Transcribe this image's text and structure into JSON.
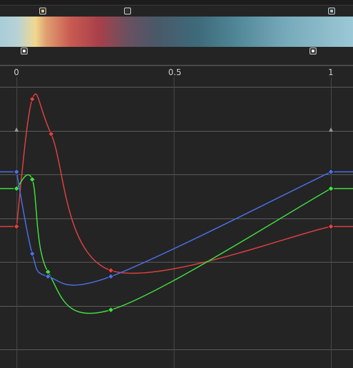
{
  "gradient": {
    "color_stops": [
      {
        "pos": 0.07,
        "color": "#e8c872"
      },
      {
        "pos": 0.34,
        "color": "#333333"
      },
      {
        "pos": 0.99,
        "color": "#9ccbd8"
      }
    ],
    "alpha_stops": [
      {
        "pos": 0.01,
        "color": "#eeeeee"
      },
      {
        "pos": 0.93,
        "color": "#eeeeee"
      }
    ]
  },
  "ruler": {
    "labels": [
      "0",
      "0.5",
      "1"
    ]
  },
  "curves": [
    {
      "name": "red",
      "color": "#e04040",
      "points": [
        [
          0.0,
          0.37
        ],
        [
          0.05,
          1.21
        ],
        [
          0.11,
          0.98
        ],
        [
          0.3,
          0.08
        ],
        [
          1.0,
          0.37
        ]
      ]
    },
    {
      "name": "green",
      "color": "#40e040",
      "points": [
        [
          0.0,
          0.62
        ],
        [
          0.05,
          0.68
        ],
        [
          0.1,
          0.07
        ],
        [
          0.3,
          -0.18
        ],
        [
          1.0,
          0.62
        ]
      ]
    },
    {
      "name": "blue",
      "color": "#4a70e8",
      "points": [
        [
          0.0,
          0.73
        ],
        [
          0.05,
          0.19
        ],
        [
          0.1,
          0.04
        ],
        [
          0.3,
          0.04
        ],
        [
          1.0,
          0.73
        ]
      ]
    }
  ],
  "colors": {
    "background": "#242424",
    "grid": "#484848",
    "grid_strong": "#5c5c5c"
  }
}
